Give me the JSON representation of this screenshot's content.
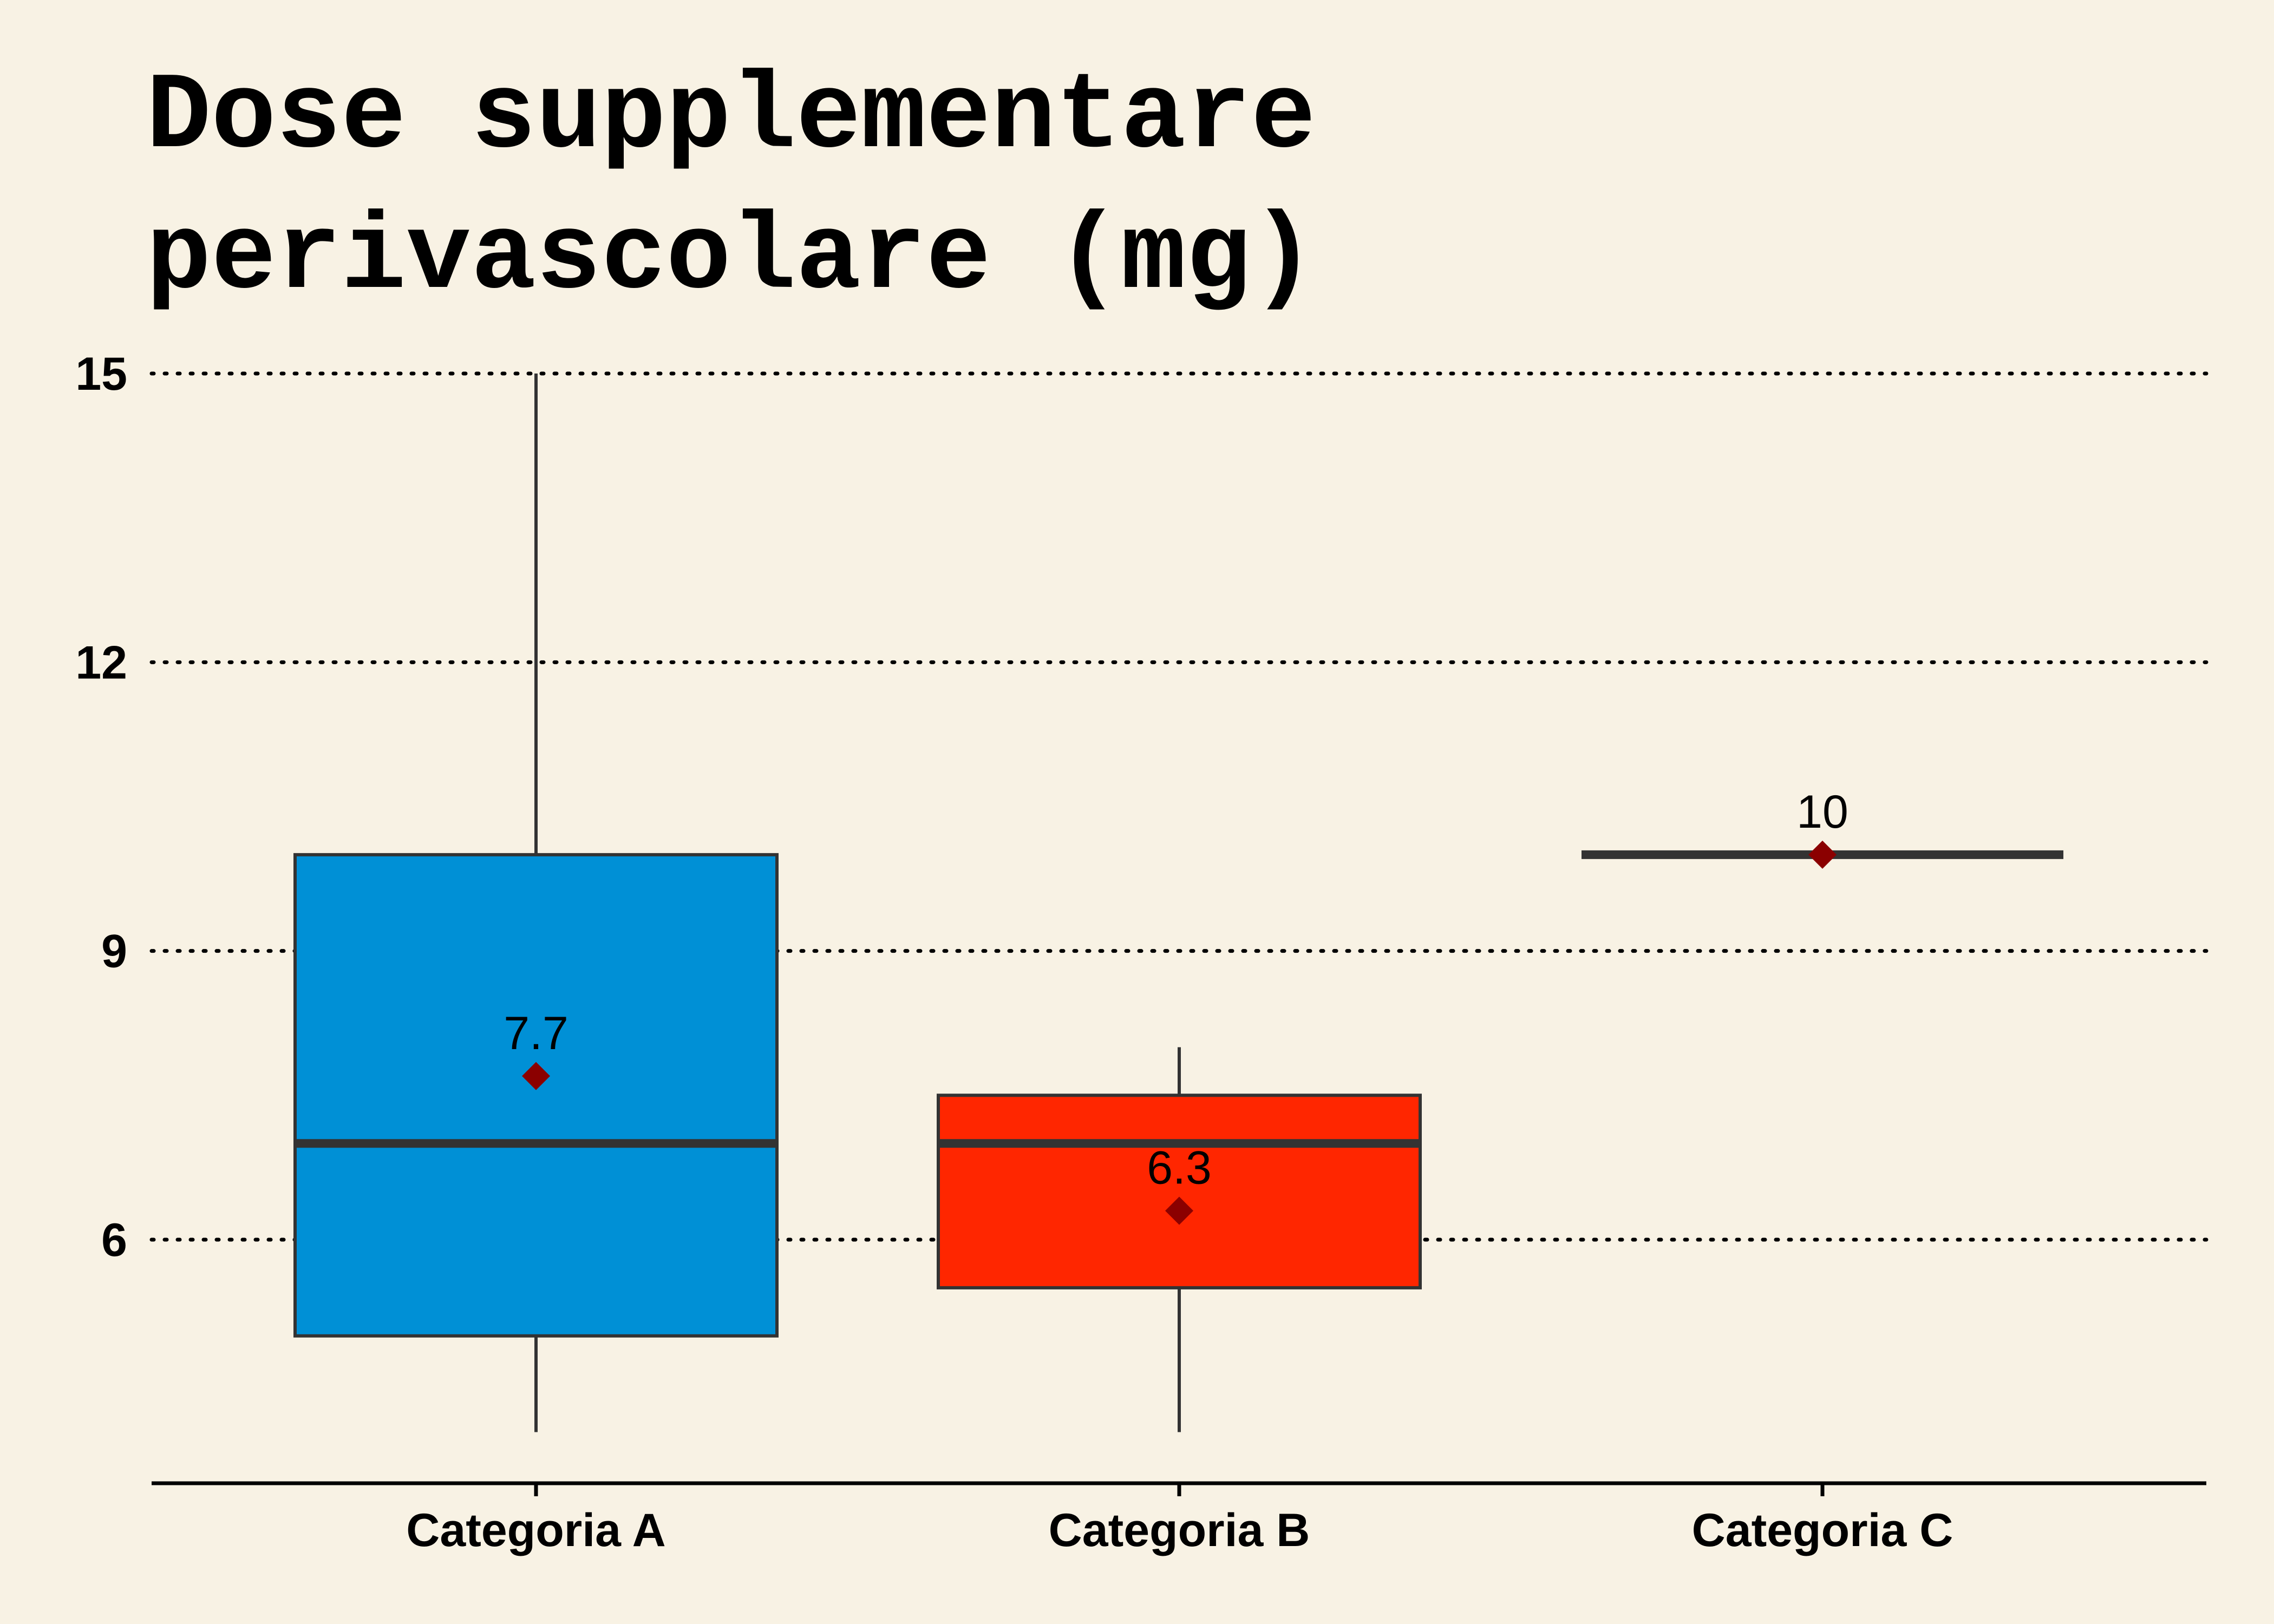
{
  "chart_data": {
    "type": "box",
    "title_lines": [
      "Dose supplementare",
      "perivascolare (mg)"
    ],
    "xlabel": "",
    "ylabel": "",
    "categories": [
      "Categoria A",
      "Categoria B",
      "Categoria C"
    ],
    "ylim": [
      3.5,
      15.5
    ],
    "yticks": [
      6,
      9,
      12,
      15
    ],
    "grid": "horizontal-dotted",
    "legend": "none",
    "boxes": [
      {
        "category": "Categoria A",
        "min": 4,
        "q1": 5,
        "median": 7,
        "q3": 10,
        "max": 15,
        "mean": 7.7,
        "mean_label": "7.7",
        "color": "#0090D6"
      },
      {
        "category": "Categoria B",
        "min": 4,
        "q1": 5.5,
        "median": 7,
        "q3": 7.5,
        "max": 8,
        "mean": 6.3,
        "mean_label": "6.3",
        "color": "#FF2600"
      },
      {
        "category": "Categoria C",
        "min": 10,
        "q1": 10,
        "median": 10,
        "q3": 10,
        "max": 10,
        "mean": 10,
        "mean_label": "10",
        "color": "#0090D6"
      }
    ],
    "mean_marker_color": "#8B0000",
    "box_outline_color": "#333333",
    "background_color": "#F8F2E4"
  }
}
